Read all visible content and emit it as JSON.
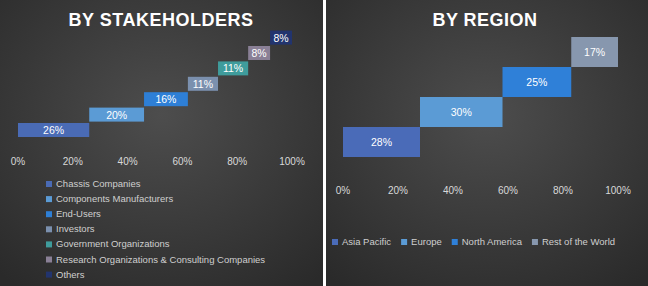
{
  "chart_data": [
    {
      "type": "bar",
      "title": "BY STAKEHOLDERS",
      "orientation": "horizontal",
      "stacked": true,
      "data_labels": true,
      "tick_labels": "x",
      "legend": "bottom",
      "grid": false,
      "categories": [
        null
      ],
      "xlim": [
        0,
        100
      ],
      "xticks": [
        {
          "value": 0,
          "label": "0%"
        },
        {
          "value": 20,
          "label": "20%"
        },
        {
          "value": 40,
          "label": "40%"
        },
        {
          "value": 60,
          "label": "60%"
        },
        {
          "value": 80,
          "label": "80%"
        },
        {
          "value": 100,
          "label": "100%"
        }
      ],
      "series": [
        {
          "name": "Chassis Companies",
          "color": "#4a6bb5",
          "values": [
            26
          ],
          "value_labels": [
            "26%"
          ]
        },
        {
          "name": "Components Manufacturers",
          "color": "#5b9bd5",
          "values": [
            20
          ],
          "value_labels": [
            "20%"
          ]
        },
        {
          "name": "End-Users",
          "color": "#2e7fd6",
          "values": [
            16
          ],
          "value_labels": [
            "16%"
          ]
        },
        {
          "name": "Investors",
          "color": "#7b90ae",
          "values": [
            11
          ],
          "value_labels": [
            "11%"
          ]
        },
        {
          "name": "Government Organizations",
          "color": "#3f9c9c",
          "values": [
            11
          ],
          "value_labels": [
            "11%"
          ]
        },
        {
          "name": "Research Organizations & Consulting Companies",
          "color": "#8a8096",
          "values": [
            8
          ],
          "value_labels": [
            "8%"
          ]
        },
        {
          "name": "Others",
          "color": "#22346e",
          "values": [
            8
          ],
          "value_labels": [
            "8%"
          ]
        }
      ]
    },
    {
      "type": "bar",
      "title": "BY REGION",
      "orientation": "horizontal",
      "stacked": true,
      "data_labels": true,
      "tick_labels": "x",
      "legend": "bottom",
      "grid": false,
      "categories": [
        null
      ],
      "xlim": [
        0,
        100
      ],
      "xticks": [
        {
          "value": 0,
          "label": "0%"
        },
        {
          "value": 20,
          "label": "20%"
        },
        {
          "value": 40,
          "label": "40%"
        },
        {
          "value": 60,
          "label": "60%"
        },
        {
          "value": 80,
          "label": "80%"
        },
        {
          "value": 100,
          "label": "100%"
        }
      ],
      "series": [
        {
          "name": "Asia Pacific",
          "color": "#4a6bb8",
          "values": [
            28
          ],
          "value_labels": [
            "28%"
          ]
        },
        {
          "name": "Europe",
          "color": "#5b9bd5",
          "values": [
            30
          ],
          "value_labels": [
            "30%"
          ]
        },
        {
          "name": "North America",
          "color": "#2f80d8",
          "values": [
            25
          ],
          "value_labels": [
            "25%"
          ]
        },
        {
          "name": "Rest of the World",
          "color": "#8797ae",
          "values": [
            17
          ],
          "value_labels": [
            "17%"
          ]
        }
      ]
    }
  ]
}
